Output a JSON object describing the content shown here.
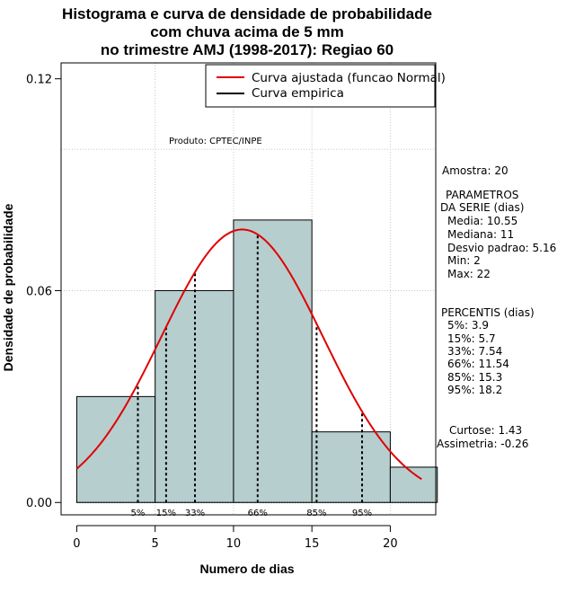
{
  "chart_data": {
    "type": "bar",
    "title_lines": [
      "Histograma e curva de densidade de probabilidade",
      "com chuva acima de 5 mm",
      "no trimestre AMJ (1998-2017): Regiao 60"
    ],
    "xlabel": "Numero de dias",
    "ylabel": "Densidade de probabilidade",
    "xlim": [
      -1,
      22.9
    ],
    "ylim": [
      -0.0035,
      0.1245
    ],
    "x_ticks": [
      0,
      5,
      10,
      15,
      20
    ],
    "y_ticks": [
      0.0,
      0.06,
      0.12
    ],
    "y_tick_labels": [
      "0.00",
      "0.06",
      "0.12"
    ],
    "grid": true,
    "grid_x": [
      5,
      10,
      15,
      20
    ],
    "grid_y": [
      0.06,
      0.1
    ],
    "bar_color": "#b7cece",
    "bins": [
      {
        "x0": 0,
        "x1": 5,
        "density": 0.03
      },
      {
        "x0": 5,
        "x1": 10,
        "density": 0.06
      },
      {
        "x0": 10,
        "x1": 15,
        "density": 0.08
      },
      {
        "x0": 15,
        "x1": 20,
        "density": 0.02
      },
      {
        "x0": 20,
        "x1": 23,
        "density": 0.01
      }
    ],
    "normal_curve": {
      "mean": 10.55,
      "sd": 5.16,
      "x_from": 0,
      "x_to": 22,
      "color": "#e00000"
    },
    "percentiles": [
      {
        "label": "5%",
        "value": 3.9
      },
      {
        "label": "15%",
        "value": 5.7
      },
      {
        "label": "33%",
        "value": 7.54
      },
      {
        "label": "66%",
        "value": 11.54
      },
      {
        "label": "85%",
        "value": 15.3
      },
      {
        "label": "95%",
        "value": 18.2
      }
    ],
    "legend": {
      "placement": "top-right",
      "entries": [
        {
          "label": "Curva ajustada (funcao Normal)",
          "color": "#e00000"
        },
        {
          "label": "Curva empirica",
          "color": "#000000"
        }
      ]
    },
    "credit": "Produto: CPTEC/INPE",
    "side_stats": {
      "amostra": "Amostra: 20",
      "parametros_title_1": "PARAMETROS",
      "parametros_title_2": "DA SERIE (dias)",
      "parametros": [
        "Media: 10.55",
        "Mediana: 11",
        "Desvio padrao: 5.16",
        "Min: 2",
        "Max: 22"
      ],
      "percentis_title": "PERCENTIS (dias)",
      "percentis": [
        "5%: 3.9",
        "15%: 5.7",
        "33%: 7.54",
        "66%: 11.54",
        "85%: 15.3",
        "95%: 18.2"
      ],
      "curtose": "Curtose: 1.43",
      "assimetria": "Assimetria: -0.26"
    }
  }
}
